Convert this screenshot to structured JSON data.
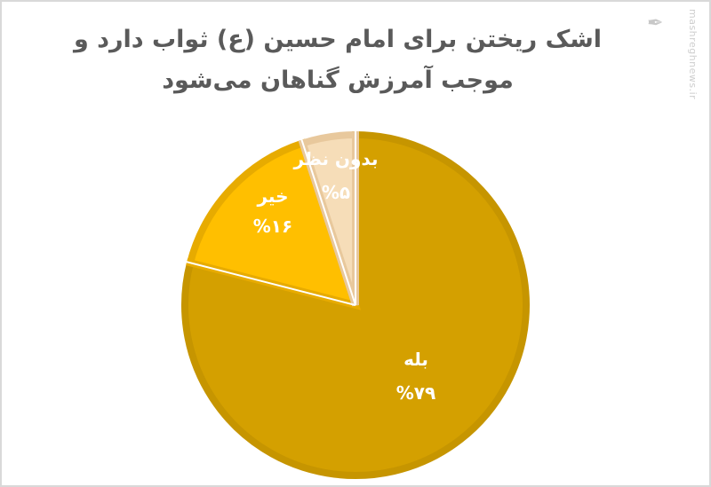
{
  "title_lines": [
    "اشک ریختن برای امام حسین (ع) ثواب دارد و",
    "موجب آمرزش گناهان می‌شود"
  ],
  "watermark": "mashreghnews.ir",
  "logo_text": "مشرق",
  "chart_data": {
    "type": "pie",
    "title": "اشک ریختن برای امام حسین (ع) ثواب دارد و موجب آمرزش گناهان می‌شود",
    "start": "12 o'clock, clockwise",
    "slices": [
      {
        "label": "بله",
        "value": 79,
        "value_label": "%۷۹",
        "color": "#D4A000",
        "border": "#C69500"
      },
      {
        "label": "خیر",
        "value": 16,
        "value_label": "%۱۶",
        "color": "#FFBF00",
        "border": "#E7AB00"
      },
      {
        "label": "بدون نظر",
        "value": 5,
        "value_label": "%۵",
        "color": "#F6DDB8",
        "border": "#E8C89C"
      }
    ]
  }
}
